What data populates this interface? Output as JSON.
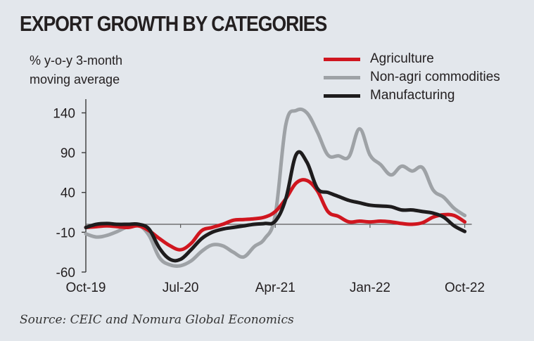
{
  "chart_data": {
    "type": "line",
    "title": "EXPORT GROWTH BY CATEGORIES",
    "ylabel": "% y-o-y 3-month moving average",
    "xlabel": "",
    "ylim": [
      -60,
      155
    ],
    "yticks": [
      140,
      90,
      40,
      -10,
      -60
    ],
    "grid": false,
    "zero_line": true,
    "legend_position": "top-right",
    "x": [
      "Oct-19",
      "Nov-19",
      "Dec-19",
      "Jan-20",
      "Feb-20",
      "Mar-20",
      "Apr-20",
      "May-20",
      "Jun-20",
      "Jul-20",
      "Aug-20",
      "Sep-20",
      "Oct-20",
      "Nov-20",
      "Dec-20",
      "Jan-21",
      "Feb-21",
      "Mar-21",
      "Apr-21",
      "May-21",
      "Jun-21",
      "Jul-21",
      "Aug-21",
      "Sep-21",
      "Oct-21",
      "Nov-21",
      "Dec-21",
      "Jan-22",
      "Feb-22",
      "Mar-22",
      "Apr-22",
      "May-22",
      "Jun-22",
      "Jul-22",
      "Aug-22",
      "Sep-22",
      "Oct-22"
    ],
    "xtick_labels": [
      {
        "label": "Oct-19",
        "index": 0
      },
      {
        "label": "Jul-20",
        "index": 9
      },
      {
        "label": "Apr-21",
        "index": 18
      },
      {
        "label": "Jan-22",
        "index": 27
      },
      {
        "label": "Oct-22",
        "index": 36
      }
    ],
    "series": [
      {
        "name": "Non-agri commodities",
        "color": "#9ea2a6",
        "values": [
          -12,
          -16,
          -14,
          -9,
          -3,
          -1,
          -14,
          -42,
          -51,
          -52,
          -46,
          -34,
          -26,
          -27,
          -35,
          -41,
          -28,
          -18,
          12,
          125,
          143,
          140,
          116,
          87,
          86,
          85,
          120,
          87,
          75,
          62,
          73,
          67,
          71,
          43,
          34,
          20,
          11
        ]
      },
      {
        "name": "Agriculture",
        "color": "#d0161f",
        "values": [
          -4,
          -3,
          -2,
          -3,
          -4,
          -2,
          -8,
          -18,
          -27,
          -32,
          -24,
          -8,
          -4,
          0,
          5,
          6,
          7,
          9,
          16,
          32,
          52,
          55,
          42,
          16,
          10,
          3,
          4,
          3,
          4,
          3,
          1,
          0,
          2,
          9,
          12,
          11,
          3
        ]
      },
      {
        "name": "Manufacturing",
        "color": "#1e1c1d",
        "values": [
          -4,
          0,
          1,
          0,
          0,
          0,
          -6,
          -30,
          -44,
          -44,
          -32,
          -18,
          -10,
          -6,
          -4,
          -2,
          0,
          1,
          4,
          32,
          88,
          78,
          45,
          40,
          35,
          30,
          27,
          24,
          23,
          22,
          18,
          18,
          16,
          14,
          9,
          -2,
          -9
        ]
      }
    ],
    "legend_order": [
      "Agriculture",
      "Non-agri commodities",
      "Manufacturing"
    ]
  },
  "header": {
    "title": "EXPORT GROWTH BY CATEGORIES",
    "ylabel_line1": "% y-o-y 3-month",
    "ylabel_line2": "moving average"
  },
  "legend": [
    {
      "label": "Agriculture",
      "color": "#d0161f"
    },
    {
      "label": "Non-agri commodities",
      "color": "#9ea2a6"
    },
    {
      "label": "Manufacturing",
      "color": "#1e1c1d"
    }
  ],
  "footer": {
    "source": "Source: CEIC and Nomura Global Economics"
  }
}
